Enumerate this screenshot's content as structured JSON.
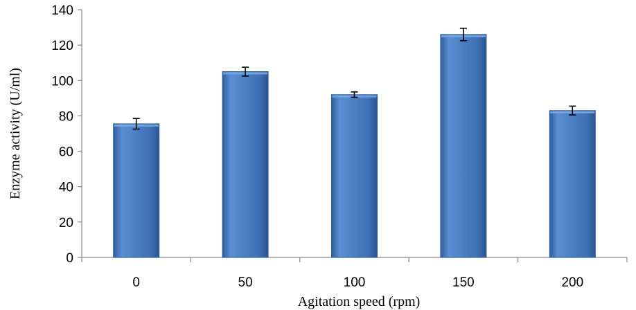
{
  "chart_data": {
    "type": "bar",
    "xlabel": "Agitation speed (rpm)",
    "ylabel": "Enzyme activity (U/ml)",
    "categories": [
      "0",
      "50",
      "100",
      "150",
      "200"
    ],
    "values": [
      75.5,
      105,
      92,
      126,
      83
    ],
    "errors": [
      3,
      2.5,
      1.5,
      3.5,
      2.5
    ],
    "ylim": [
      0,
      140
    ],
    "yticks": [
      0,
      20,
      40,
      60,
      80,
      100,
      120,
      140
    ],
    "ytick_labels": [
      "0",
      "20",
      "40",
      "60",
      "80",
      "100",
      "120",
      "140"
    ],
    "grid": false,
    "legend": "none",
    "colors": {
      "bar_light": "#7aa6de",
      "bar_mid": "#4a7fc6",
      "bar_dark": "#2d5d9c",
      "axis": "#868686",
      "error_bar": "#000000"
    }
  }
}
